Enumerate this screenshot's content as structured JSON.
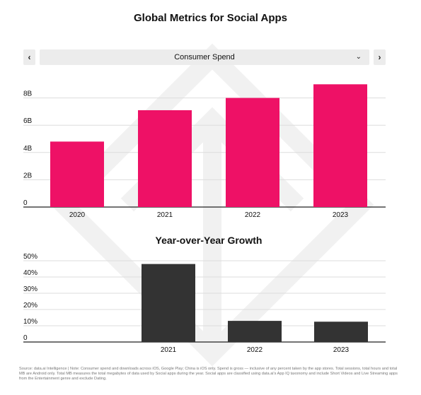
{
  "header": {
    "title": "Global Metrics for Social Apps"
  },
  "selector": {
    "prev_label": "‹",
    "next_label": "›",
    "selected_metric": "Consumer Spend",
    "caret": "⌄"
  },
  "colors": {
    "spend_bar": "#ee1166",
    "growth_bar": "#333333",
    "grid": "#dddddd"
  },
  "chart_data": [
    {
      "type": "bar",
      "title": "",
      "xlabel": "",
      "ylabel": "",
      "categories": [
        "2020",
        "2021",
        "2022",
        "2023"
      ],
      "values": [
        4.8,
        7.1,
        8.0,
        9.0
      ],
      "unit": "billions",
      "ylim": [
        0,
        10
      ],
      "y_ticks": [
        {
          "value": 0,
          "label": "0"
        },
        {
          "value": 2,
          "label": "2B"
        },
        {
          "value": 4,
          "label": "4B"
        },
        {
          "value": 6,
          "label": "6B"
        },
        {
          "value": 8,
          "label": "8B"
        }
      ],
      "grid": true,
      "legend": "none"
    },
    {
      "type": "bar",
      "title": "Year-over-Year Growth",
      "xlabel": "",
      "ylabel": "",
      "categories": [
        "2021",
        "2022",
        "2023"
      ],
      "values": [
        48,
        13,
        12.5
      ],
      "unit": "percent",
      "ylim": [
        0,
        50
      ],
      "y_ticks": [
        {
          "value": 0,
          "label": "0"
        },
        {
          "value": 10,
          "label": "10%"
        },
        {
          "value": 20,
          "label": "20%"
        },
        {
          "value": 30,
          "label": "30%"
        },
        {
          "value": 40,
          "label": "40%"
        },
        {
          "value": 50,
          "label": "50%"
        }
      ],
      "grid": true,
      "legend": "none"
    }
  ],
  "footnote": {
    "text": "Source: data.ai Intelligence | Note: Consumer spend and downloads across iOS, Google Play; China is iOS only. Spend is gross — inclusive of any percent taken by the app stores. Total sessions, total hours and total MB are Android only. Total MB measures the total megabytes of data used by Social apps during the year. Social apps are classified using data.ai's App IQ taxonomy and include Short Videos and Live Streaming apps from the Entertainment genre and exclude Dating."
  }
}
